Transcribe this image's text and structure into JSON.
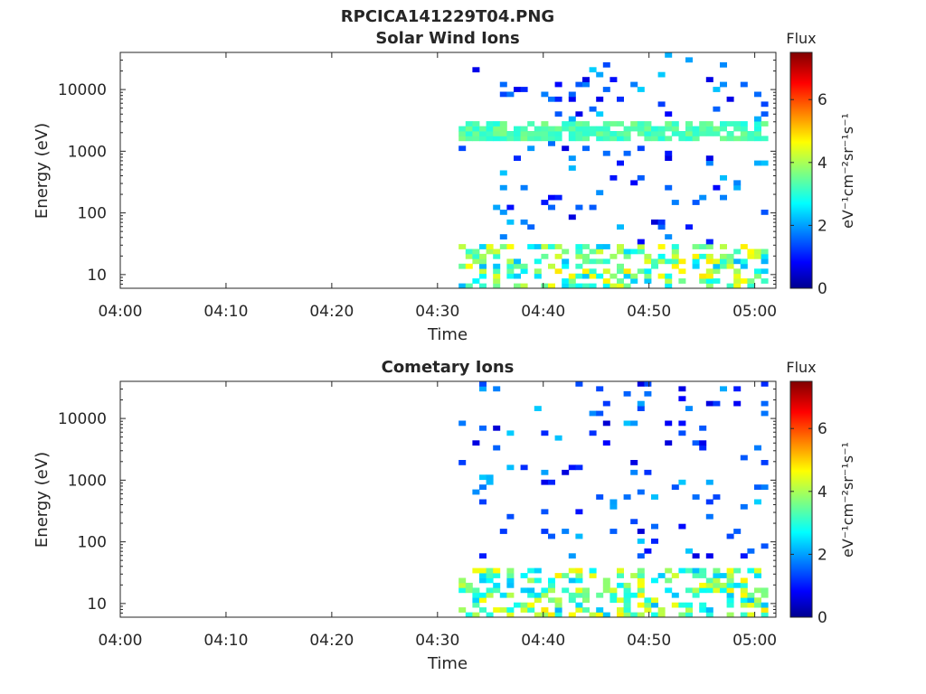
{
  "figure": {
    "title": "RPCICA141229T04.PNG"
  },
  "chart_data": [
    {
      "type": "heatmap",
      "title": "Solar Wind Ions",
      "xlabel": "Time",
      "ylabel": "Energy (eV)",
      "y_scale": "log",
      "x_range": [
        "04:00",
        "05:02"
      ],
      "y_range": [
        6,
        40000
      ],
      "x_ticks": [
        "04:00",
        "04:10",
        "04:20",
        "04:30",
        "04:40",
        "04:50",
        "05:00"
      ],
      "y_ticks": [
        "10",
        "100",
        "1000",
        "10000"
      ],
      "colorbar": {
        "label_top": "Flux",
        "unit_label": "eV⁻¹cm⁻²sr⁻¹s⁻¹",
        "range": [
          0,
          7.5
        ],
        "ticks": [
          "0",
          "2",
          "4",
          "6"
        ],
        "colormap": "jet"
      },
      "data_start": "04:32",
      "data_end": "05:01"
    },
    {
      "type": "heatmap",
      "title": "Cometary Ions",
      "xlabel": "Time",
      "ylabel": "Energy (eV)",
      "y_scale": "log",
      "x_range": [
        "04:00",
        "05:02"
      ],
      "y_range": [
        6,
        40000
      ],
      "x_ticks": [
        "04:00",
        "04:10",
        "04:20",
        "04:30",
        "04:40",
        "04:50",
        "05:00"
      ],
      "y_ticks": [
        "10",
        "100",
        "1000",
        "10000"
      ],
      "colorbar": {
        "label_top": "Flux",
        "unit_label": "eV⁻¹cm⁻²sr⁻¹s⁻¹",
        "range": [
          0,
          7.5
        ],
        "ticks": [
          "0",
          "2",
          "4",
          "6"
        ],
        "colormap": "jet"
      },
      "data_start": "04:32",
      "data_end": "05:01"
    }
  ]
}
